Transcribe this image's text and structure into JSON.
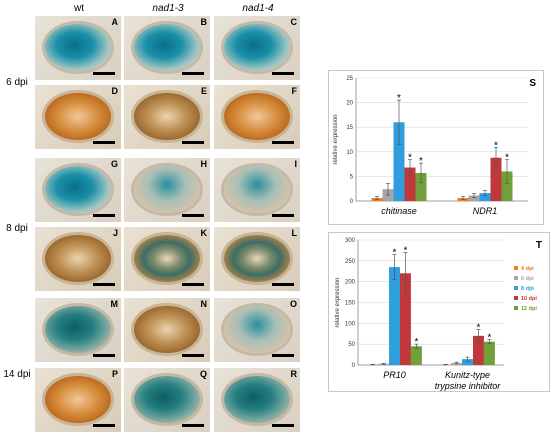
{
  "figure": {
    "column_headers": [
      "wt",
      "nad1-3",
      "nad1-4"
    ],
    "row_labels": [
      "6 dpi",
      "8 dpi",
      "14 dpi"
    ],
    "panel_letters": [
      "A",
      "B",
      "C",
      "D",
      "E",
      "F",
      "G",
      "H",
      "I",
      "J",
      "K",
      "L",
      "M",
      "N",
      "O",
      "P",
      "Q",
      "R"
    ]
  },
  "chart_data": [
    {
      "panel": "S",
      "type": "bar",
      "ylabel": "relative expression",
      "ylim": [
        0,
        25
      ],
      "yticks": [
        0,
        5,
        10,
        15,
        20,
        25
      ],
      "categories": [
        "chitinase",
        "NDR1"
      ],
      "series": [
        {
          "name": "4 dpi",
          "color": "#f07c1a",
          "values": [
            0.6,
            0.6
          ],
          "errors": [
            0.3,
            0.3
          ],
          "star": [
            false,
            false
          ]
        },
        {
          "name": "6 dpi",
          "color": "#a6a6a6",
          "values": [
            2.4,
            1.1
          ],
          "errors": [
            1.2,
            0.4
          ],
          "star": [
            false,
            false
          ]
        },
        {
          "name": "8 dpi",
          "color": "#2e9fdc",
          "values": [
            16.0,
            1.6
          ],
          "errors": [
            4.5,
            0.5
          ],
          "star": [
            true,
            false
          ]
        },
        {
          "name": "10 dpi",
          "color": "#c0383a",
          "values": [
            6.8,
            8.8
          ],
          "errors": [
            1.6,
            2.1
          ],
          "star": [
            true,
            true
          ]
        },
        {
          "name": "12 dpi",
          "color": "#71a03a",
          "values": [
            5.7,
            6.0
          ],
          "errors": [
            2.0,
            2.4
          ],
          "star": [
            true,
            true
          ]
        }
      ]
    },
    {
      "panel": "T",
      "type": "bar",
      "ylabel": "relative expression",
      "ylim": [
        0,
        300
      ],
      "yticks": [
        0,
        50,
        100,
        150,
        200,
        250,
        300
      ],
      "categories": [
        "PR10",
        "Kunitz-type trypsine inhibitor"
      ],
      "series": [
        {
          "name": "4 dpi",
          "color": "#f07c1a",
          "values": [
            1,
            1
          ],
          "errors": [
            0.5,
            0.5
          ],
          "star": [
            false,
            false
          ]
        },
        {
          "name": "6 dpi",
          "color": "#a6a6a6",
          "values": [
            3,
            5
          ],
          "errors": [
            1,
            2
          ],
          "star": [
            false,
            false
          ]
        },
        {
          "name": "8 dpi",
          "color": "#2e9fdc",
          "values": [
            235,
            14
          ],
          "errors": [
            30,
            5
          ],
          "star": [
            true,
            false
          ]
        },
        {
          "name": "10 dpi",
          "color": "#c0383a",
          "values": [
            220,
            70
          ],
          "errors": [
            50,
            15
          ],
          "star": [
            true,
            true
          ]
        },
        {
          "name": "12 dpi",
          "color": "#71a03a",
          "values": [
            45,
            56
          ],
          "errors": [
            5,
            5
          ],
          "star": [
            true,
            true
          ]
        }
      ]
    }
  ]
}
